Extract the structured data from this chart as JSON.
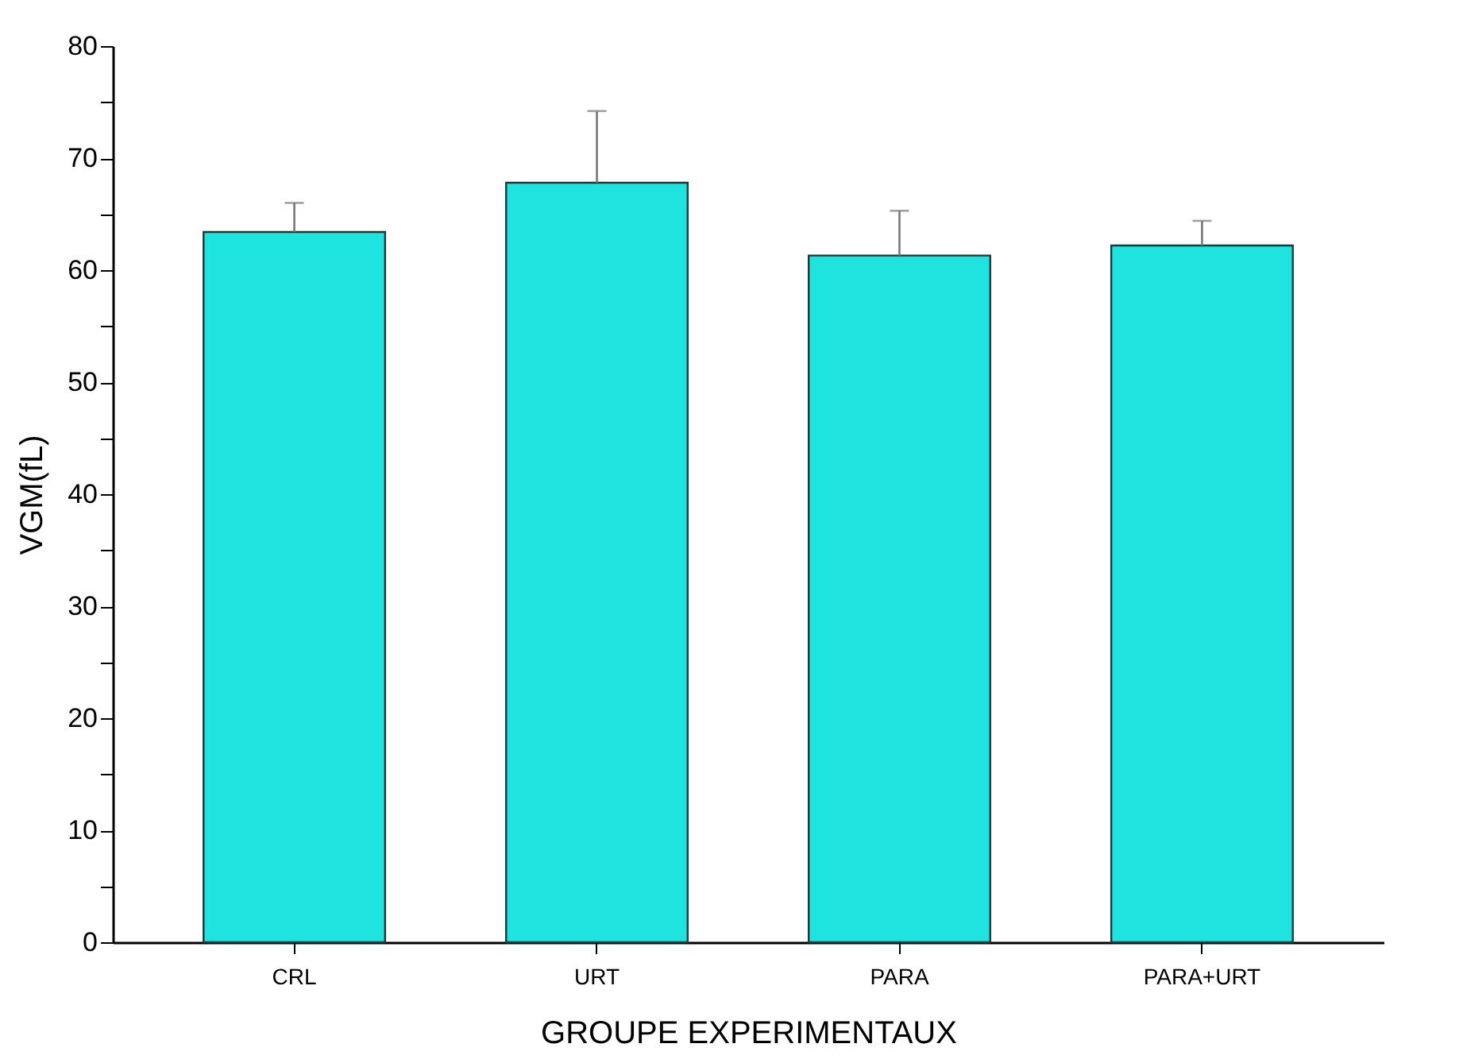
{
  "chart_data": {
    "type": "bar",
    "xlabel": "GROUPE EXPERIMENTAUX",
    "ylabel": "VGM(fL)",
    "categories": [
      "CRL",
      "URT",
      "PARA",
      "PARA+URT"
    ],
    "values": [
      63.4,
      67.8,
      61.3,
      62.2
    ],
    "errors": [
      [
        63.4,
        66.0
      ],
      [
        67.8,
        74.2
      ],
      [
        61.3,
        65.3
      ],
      [
        62.2,
        64.4
      ]
    ],
    "color": "#1ee3df",
    "ylim": [
      0,
      80
    ],
    "yticks": [
      0,
      {
        "value": 5,
        "label": null
      },
      10,
      {
        "value": 15,
        "label": null
      },
      20,
      {
        "value": 25,
        "label": null
      },
      30,
      {
        "value": 35,
        "label": null
      },
      40,
      {
        "value": 45,
        "label": null
      },
      50,
      {
        "value": 55,
        "label": null
      },
      60,
      {
        "value": 65,
        "label": null
      },
      70,
      {
        "value": 75,
        "label": null
      },
      80
    ],
    "grid": false
  }
}
